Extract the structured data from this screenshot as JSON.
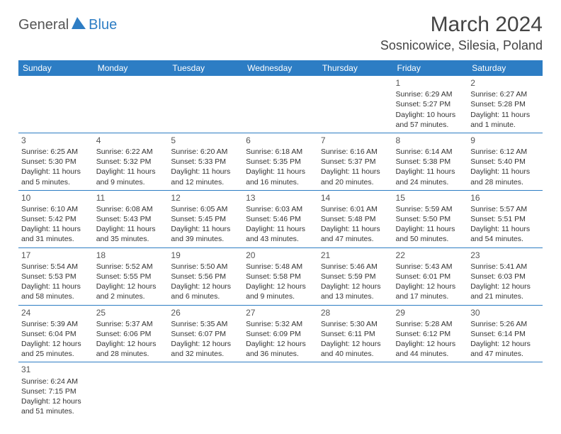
{
  "logo": {
    "part1": "General",
    "part2": "Blue"
  },
  "title": "March 2024",
  "location": "Sosnicowice, Silesia, Poland",
  "colors": {
    "brand": "#2d7dc4",
    "text": "#333333",
    "bg": "#ffffff"
  },
  "weekdays": [
    "Sunday",
    "Monday",
    "Tuesday",
    "Wednesday",
    "Thursday",
    "Friday",
    "Saturday"
  ],
  "weeks": [
    [
      null,
      null,
      null,
      null,
      null,
      {
        "n": "1",
        "sr": "Sunrise: 6:29 AM",
        "ss": "Sunset: 5:27 PM",
        "dl": "Daylight: 10 hours and 57 minutes."
      },
      {
        "n": "2",
        "sr": "Sunrise: 6:27 AM",
        "ss": "Sunset: 5:28 PM",
        "dl": "Daylight: 11 hours and 1 minute."
      }
    ],
    [
      {
        "n": "3",
        "sr": "Sunrise: 6:25 AM",
        "ss": "Sunset: 5:30 PM",
        "dl": "Daylight: 11 hours and 5 minutes."
      },
      {
        "n": "4",
        "sr": "Sunrise: 6:22 AM",
        "ss": "Sunset: 5:32 PM",
        "dl": "Daylight: 11 hours and 9 minutes."
      },
      {
        "n": "5",
        "sr": "Sunrise: 6:20 AM",
        "ss": "Sunset: 5:33 PM",
        "dl": "Daylight: 11 hours and 12 minutes."
      },
      {
        "n": "6",
        "sr": "Sunrise: 6:18 AM",
        "ss": "Sunset: 5:35 PM",
        "dl": "Daylight: 11 hours and 16 minutes."
      },
      {
        "n": "7",
        "sr": "Sunrise: 6:16 AM",
        "ss": "Sunset: 5:37 PM",
        "dl": "Daylight: 11 hours and 20 minutes."
      },
      {
        "n": "8",
        "sr": "Sunrise: 6:14 AM",
        "ss": "Sunset: 5:38 PM",
        "dl": "Daylight: 11 hours and 24 minutes."
      },
      {
        "n": "9",
        "sr": "Sunrise: 6:12 AM",
        "ss": "Sunset: 5:40 PM",
        "dl": "Daylight: 11 hours and 28 minutes."
      }
    ],
    [
      {
        "n": "10",
        "sr": "Sunrise: 6:10 AM",
        "ss": "Sunset: 5:42 PM",
        "dl": "Daylight: 11 hours and 31 minutes."
      },
      {
        "n": "11",
        "sr": "Sunrise: 6:08 AM",
        "ss": "Sunset: 5:43 PM",
        "dl": "Daylight: 11 hours and 35 minutes."
      },
      {
        "n": "12",
        "sr": "Sunrise: 6:05 AM",
        "ss": "Sunset: 5:45 PM",
        "dl": "Daylight: 11 hours and 39 minutes."
      },
      {
        "n": "13",
        "sr": "Sunrise: 6:03 AM",
        "ss": "Sunset: 5:46 PM",
        "dl": "Daylight: 11 hours and 43 minutes."
      },
      {
        "n": "14",
        "sr": "Sunrise: 6:01 AM",
        "ss": "Sunset: 5:48 PM",
        "dl": "Daylight: 11 hours and 47 minutes."
      },
      {
        "n": "15",
        "sr": "Sunrise: 5:59 AM",
        "ss": "Sunset: 5:50 PM",
        "dl": "Daylight: 11 hours and 50 minutes."
      },
      {
        "n": "16",
        "sr": "Sunrise: 5:57 AM",
        "ss": "Sunset: 5:51 PM",
        "dl": "Daylight: 11 hours and 54 minutes."
      }
    ],
    [
      {
        "n": "17",
        "sr": "Sunrise: 5:54 AM",
        "ss": "Sunset: 5:53 PM",
        "dl": "Daylight: 11 hours and 58 minutes."
      },
      {
        "n": "18",
        "sr": "Sunrise: 5:52 AM",
        "ss": "Sunset: 5:55 PM",
        "dl": "Daylight: 12 hours and 2 minutes."
      },
      {
        "n": "19",
        "sr": "Sunrise: 5:50 AM",
        "ss": "Sunset: 5:56 PM",
        "dl": "Daylight: 12 hours and 6 minutes."
      },
      {
        "n": "20",
        "sr": "Sunrise: 5:48 AM",
        "ss": "Sunset: 5:58 PM",
        "dl": "Daylight: 12 hours and 9 minutes."
      },
      {
        "n": "21",
        "sr": "Sunrise: 5:46 AM",
        "ss": "Sunset: 5:59 PM",
        "dl": "Daylight: 12 hours and 13 minutes."
      },
      {
        "n": "22",
        "sr": "Sunrise: 5:43 AM",
        "ss": "Sunset: 6:01 PM",
        "dl": "Daylight: 12 hours and 17 minutes."
      },
      {
        "n": "23",
        "sr": "Sunrise: 5:41 AM",
        "ss": "Sunset: 6:03 PM",
        "dl": "Daylight: 12 hours and 21 minutes."
      }
    ],
    [
      {
        "n": "24",
        "sr": "Sunrise: 5:39 AM",
        "ss": "Sunset: 6:04 PM",
        "dl": "Daylight: 12 hours and 25 minutes."
      },
      {
        "n": "25",
        "sr": "Sunrise: 5:37 AM",
        "ss": "Sunset: 6:06 PM",
        "dl": "Daylight: 12 hours and 28 minutes."
      },
      {
        "n": "26",
        "sr": "Sunrise: 5:35 AM",
        "ss": "Sunset: 6:07 PM",
        "dl": "Daylight: 12 hours and 32 minutes."
      },
      {
        "n": "27",
        "sr": "Sunrise: 5:32 AM",
        "ss": "Sunset: 6:09 PM",
        "dl": "Daylight: 12 hours and 36 minutes."
      },
      {
        "n": "28",
        "sr": "Sunrise: 5:30 AM",
        "ss": "Sunset: 6:11 PM",
        "dl": "Daylight: 12 hours and 40 minutes."
      },
      {
        "n": "29",
        "sr": "Sunrise: 5:28 AM",
        "ss": "Sunset: 6:12 PM",
        "dl": "Daylight: 12 hours and 44 minutes."
      },
      {
        "n": "30",
        "sr": "Sunrise: 5:26 AM",
        "ss": "Sunset: 6:14 PM",
        "dl": "Daylight: 12 hours and 47 minutes."
      }
    ],
    [
      {
        "n": "31",
        "sr": "Sunrise: 6:24 AM",
        "ss": "Sunset: 7:15 PM",
        "dl": "Daylight: 12 hours and 51 minutes."
      },
      null,
      null,
      null,
      null,
      null,
      null
    ]
  ]
}
